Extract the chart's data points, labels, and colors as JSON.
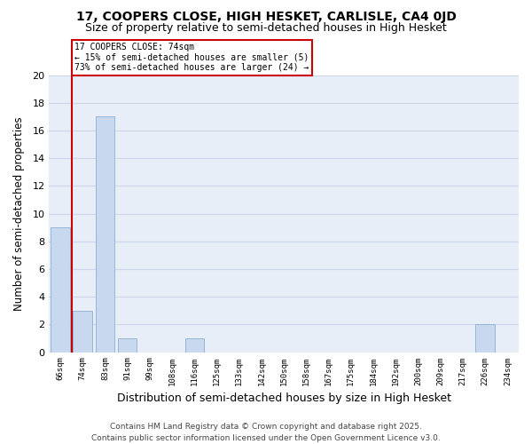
{
  "title": "17, COOPERS CLOSE, HIGH HESKET, CARLISLE, CA4 0JD",
  "subtitle": "Size of property relative to semi-detached houses in High Hesket",
  "xlabel": "Distribution of semi-detached houses by size in High Hesket",
  "ylabel": "Number of semi-detached properties",
  "footer_line1": "Contains HM Land Registry data © Crown copyright and database right 2025.",
  "footer_line2": "Contains public sector information licensed under the Open Government Licence v3.0.",
  "categories": [
    "66sqm",
    "74sqm",
    "83sqm",
    "91sqm",
    "99sqm",
    "108sqm",
    "116sqm",
    "125sqm",
    "133sqm",
    "142sqm",
    "150sqm",
    "158sqm",
    "167sqm",
    "175sqm",
    "184sqm",
    "192sqm",
    "200sqm",
    "209sqm",
    "217sqm",
    "226sqm",
    "234sqm"
  ],
  "values": [
    9,
    3,
    17,
    1,
    0,
    0,
    1,
    0,
    0,
    0,
    0,
    0,
    0,
    0,
    0,
    0,
    0,
    0,
    0,
    2,
    0
  ],
  "bar_color": "#c8d8ee",
  "bar_edge_color": "#8bafd4",
  "subject_line_color": "#cc0000",
  "annotation_text": "17 COOPERS CLOSE: 74sqm\n← 15% of semi-detached houses are smaller (5)\n73% of semi-detached houses are larger (24) →",
  "annotation_box_color": "#cc0000",
  "ylim": [
    0,
    20
  ],
  "yticks": [
    0,
    2,
    4,
    6,
    8,
    10,
    12,
    14,
    16,
    18,
    20
  ],
  "grid_color": "#ccd6e8",
  "background_color": "#e8eef8",
  "title_fontsize": 10,
  "subtitle_fontsize": 9,
  "xlabel_fontsize": 9,
  "ylabel_fontsize": 8.5,
  "footer_fontsize": 6.5
}
